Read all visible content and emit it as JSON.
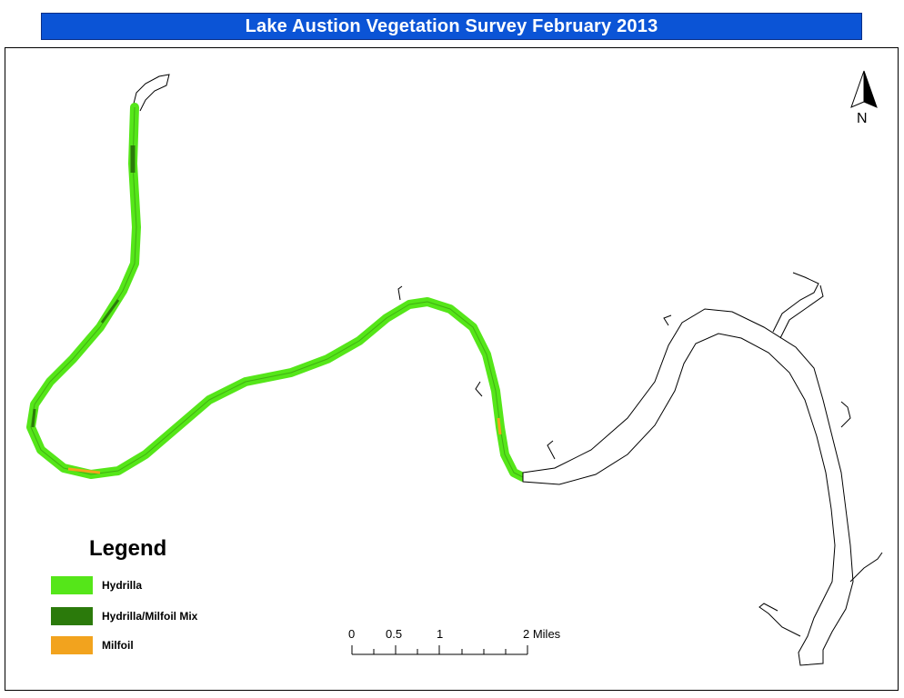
{
  "title": "Lake Austion Vegetation Survey February 2013",
  "colors": {
    "title_bar": "#0b54d6",
    "hydrilla": "#55e619",
    "hydrilla_milfoil_mix": "#2b7a0b",
    "milfoil": "#f2a31e",
    "river_outline": "#000000"
  },
  "legend": {
    "title": "Legend",
    "items": [
      {
        "label": "Hydrilla",
        "color": "#55e619"
      },
      {
        "label": "Hydrilla/Milfoil Mix",
        "color": "#2b7a0b"
      },
      {
        "label": "Milfoil",
        "color": "#f2a31e"
      }
    ]
  },
  "north_arrow": {
    "label": "N"
  },
  "scale_bar": {
    "labels": [
      "0",
      "0.5",
      "1",
      "2 Miles"
    ]
  }
}
